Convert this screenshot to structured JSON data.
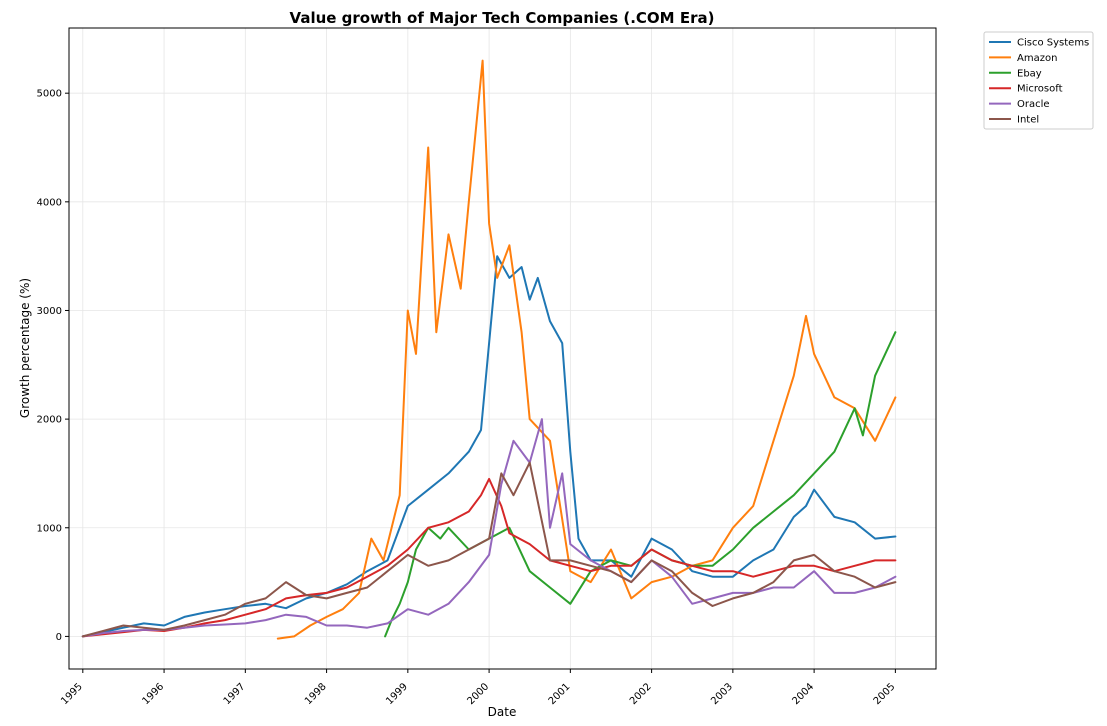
{
  "chart_data": {
    "type": "line",
    "title": "Value growth of Major Tech Companies (.COM Era)",
    "xlabel": "Date",
    "ylabel": "Growth percentage (%)",
    "xlim": [
      1994.83,
      2005.5
    ],
    "ylim": [
      -300,
      5600
    ],
    "x_ticks": [
      "1995",
      "1996",
      "1997",
      "1998",
      "1999",
      "2000",
      "2001",
      "2002",
      "2003",
      "2004",
      "2005"
    ],
    "y_ticks": [
      "0",
      "1000",
      "2000",
      "3000",
      "4000",
      "5000"
    ],
    "grid": true,
    "legend_position": "outside top-right",
    "series": [
      {
        "name": "Cisco Systems",
        "color": "#1f77b4",
        "x": [
          1995.0,
          1995.25,
          1995.5,
          1995.75,
          1996.0,
          1996.25,
          1996.5,
          1996.75,
          1997.0,
          1997.25,
          1997.5,
          1997.75,
          1998.0,
          1998.25,
          1998.5,
          1998.75,
          1999.0,
          1999.25,
          1999.5,
          1999.75,
          1999.9,
          2000.0,
          2000.1,
          2000.25,
          2000.4,
          2000.5,
          2000.6,
          2000.75,
          2000.9,
          2001.0,
          2001.1,
          2001.25,
          2001.5,
          2001.75,
          2002.0,
          2002.25,
          2002.5,
          2002.75,
          2003.0,
          2003.25,
          2003.5,
          2003.75,
          2003.9,
          2004.0,
          2004.25,
          2004.5,
          2004.75,
          2005.0
        ],
        "y": [
          0,
          40,
          80,
          120,
          100,
          180,
          220,
          250,
          280,
          300,
          260,
          350,
          400,
          480,
          600,
          700,
          1200,
          1350,
          1500,
          1700,
          1900,
          2700,
          3500,
          3300,
          3400,
          3100,
          3300,
          2900,
          2700,
          1700,
          900,
          700,
          700,
          550,
          900,
          800,
          600,
          550,
          550,
          700,
          800,
          1100,
          1200,
          1350,
          1100,
          1050,
          900,
          920
        ]
      },
      {
        "name": "Amazon",
        "color": "#ff7f0e",
        "x": [
          1997.4,
          1997.6,
          1997.8,
          1998.0,
          1998.2,
          1998.4,
          1998.55,
          1998.7,
          1998.9,
          1999.0,
          1999.1,
          1999.25,
          1999.35,
          1999.5,
          1999.65,
          1999.75,
          1999.92,
          2000.0,
          2000.1,
          2000.25,
          2000.4,
          2000.5,
          2000.75,
          2001.0,
          2001.25,
          2001.5,
          2001.75,
          2002.0,
          2002.25,
          2002.5,
          2002.75,
          2003.0,
          2003.25,
          2003.5,
          2003.75,
          2003.9,
          2004.0,
          2004.25,
          2004.5,
          2004.75,
          2005.0
        ],
        "y": [
          -20,
          0,
          100,
          180,
          250,
          400,
          900,
          700,
          1300,
          3000,
          2600,
          4500,
          2800,
          3700,
          3200,
          4000,
          5300,
          3800,
          3300,
          3600,
          2800,
          2000,
          1800,
          600,
          500,
          800,
          350,
          500,
          550,
          650,
          700,
          1000,
          1200,
          1800,
          2400,
          2950,
          2600,
          2200,
          2100,
          1800,
          2200
        ]
      },
      {
        "name": "Ebay",
        "color": "#2ca02c",
        "x": [
          1998.72,
          1998.8,
          1998.9,
          1999.0,
          1999.1,
          1999.25,
          1999.4,
          1999.5,
          1999.75,
          2000.0,
          2000.25,
          2000.5,
          2000.75,
          2001.0,
          2001.25,
          2001.5,
          2001.75,
          2002.0,
          2002.25,
          2002.5,
          2002.75,
          2003.0,
          2003.25,
          2003.5,
          2003.75,
          2004.0,
          2004.25,
          2004.5,
          2004.6,
          2004.75,
          2005.0
        ],
        "y": [
          0,
          150,
          300,
          500,
          800,
          1000,
          900,
          1000,
          800,
          900,
          1000,
          600,
          450,
          300,
          600,
          700,
          650,
          800,
          700,
          650,
          650,
          800,
          1000,
          1150,
          1300,
          1500,
          1700,
          2100,
          1850,
          2400,
          2800
        ]
      },
      {
        "name": "Microsoft",
        "color": "#d62728",
        "x": [
          1995.0,
          1995.25,
          1995.5,
          1995.75,
          1996.0,
          1996.25,
          1996.5,
          1996.75,
          1997.0,
          1997.25,
          1997.5,
          1997.75,
          1998.0,
          1998.25,
          1998.5,
          1998.75,
          1999.0,
          1999.25,
          1999.5,
          1999.75,
          1999.9,
          2000.0,
          2000.15,
          2000.25,
          2000.5,
          2000.75,
          2001.0,
          2001.25,
          2001.5,
          2001.75,
          2002.0,
          2002.25,
          2002.5,
          2002.75,
          2003.0,
          2003.25,
          2003.5,
          2003.75,
          2004.0,
          2004.25,
          2004.5,
          2004.75,
          2005.0
        ],
        "y": [
          0,
          20,
          40,
          60,
          50,
          80,
          120,
          150,
          200,
          250,
          350,
          380,
          400,
          450,
          550,
          650,
          800,
          1000,
          1050,
          1150,
          1300,
          1450,
          1200,
          950,
          850,
          700,
          650,
          600,
          650,
          650,
          800,
          700,
          650,
          600,
          600,
          550,
          600,
          650,
          650,
          600,
          650,
          700,
          700
        ]
      },
      {
        "name": "Oracle",
        "color": "#9467bd",
        "x": [
          1995.0,
          1995.25,
          1995.5,
          1995.75,
          1996.0,
          1996.25,
          1996.5,
          1996.75,
          1997.0,
          1997.25,
          1997.5,
          1997.75,
          1998.0,
          1998.25,
          1998.5,
          1998.75,
          1999.0,
          1999.25,
          1999.5,
          1999.75,
          2000.0,
          2000.15,
          2000.3,
          2000.5,
          2000.65,
          2000.75,
          2000.9,
          2001.0,
          2001.25,
          2001.5,
          2001.75,
          2002.0,
          2002.25,
          2002.5,
          2002.75,
          2003.0,
          2003.25,
          2003.5,
          2003.75,
          2004.0,
          2004.25,
          2004.5,
          2004.75,
          2005.0
        ],
        "y": [
          0,
          30,
          50,
          60,
          60,
          80,
          100,
          110,
          120,
          150,
          200,
          180,
          100,
          100,
          80,
          120,
          250,
          200,
          300,
          500,
          750,
          1400,
          1800,
          1600,
          2000,
          1000,
          1500,
          850,
          700,
          600,
          500,
          700,
          550,
          300,
          350,
          400,
          400,
          450,
          450,
          600,
          400,
          400,
          450,
          550
        ]
      },
      {
        "name": "Intel",
        "color": "#8c564b",
        "x": [
          1995.0,
          1995.25,
          1995.5,
          1995.75,
          1996.0,
          1996.25,
          1996.5,
          1996.75,
          1997.0,
          1997.25,
          1997.5,
          1997.75,
          1998.0,
          1998.25,
          1998.5,
          1998.75,
          1999.0,
          1999.25,
          1999.5,
          1999.75,
          2000.0,
          2000.15,
          2000.3,
          2000.5,
          2000.75,
          2001.0,
          2001.25,
          2001.5,
          2001.75,
          2002.0,
          2002.25,
          2002.5,
          2002.75,
          2003.0,
          2003.25,
          2003.5,
          2003.75,
          2004.0,
          2004.25,
          2004.5,
          2004.75,
          2005.0
        ],
        "y": [
          0,
          50,
          100,
          80,
          60,
          100,
          150,
          200,
          300,
          350,
          500,
          380,
          350,
          400,
          450,
          600,
          750,
          650,
          700,
          800,
          900,
          1500,
          1300,
          1600,
          700,
          700,
          650,
          600,
          500,
          700,
          600,
          400,
          280,
          350,
          400,
          500,
          700,
          750,
          600,
          550,
          450,
          500
        ]
      }
    ]
  }
}
